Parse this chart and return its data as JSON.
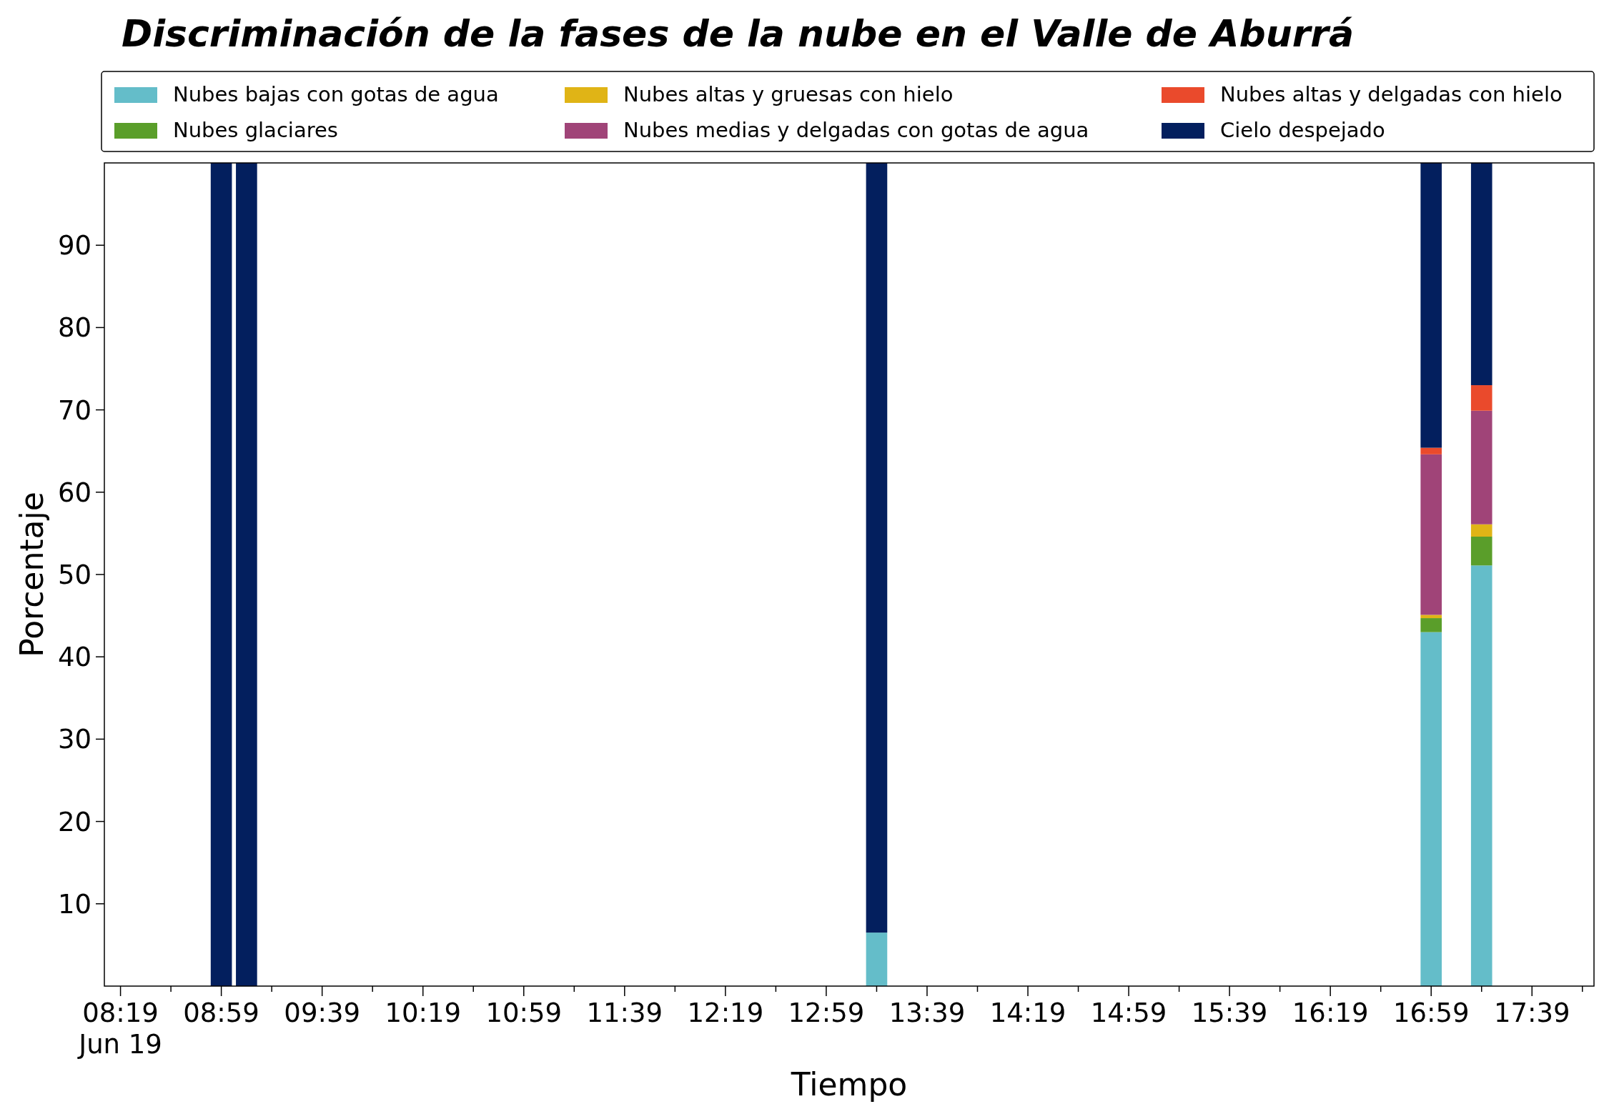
{
  "chart_data": {
    "type": "bar",
    "stacked": true,
    "title": "Discriminación de la fases de la nube en el Valle de Aburrá",
    "xlabel": "Tiempo",
    "ylabel": "Porcentaje",
    "x": [
      8.9833,
      9.15,
      13.3167,
      16.9833,
      17.3167
    ],
    "series": [
      {
        "name": "Nubes bajas con gotas de agua",
        "color": "#64bdc9",
        "values": [
          0,
          0,
          6.5,
          43,
          51.1
        ]
      },
      {
        "name": "Nubes glaciares",
        "color": "#5a9e2a",
        "values": [
          0,
          0,
          0,
          1.7,
          3.5
        ]
      },
      {
        "name": "Nubes altas y gruesas con hielo",
        "color": "#e0b416",
        "values": [
          0,
          0,
          0,
          0.4,
          1.5
        ]
      },
      {
        "name": "Nubes medias y delgadas con gotas de agua",
        "color": "#a04478",
        "values": [
          0,
          0,
          0,
          19.5,
          13.8
        ]
      },
      {
        "name": "Nubes altas y delgadas con hielo",
        "color": "#ea4a2c",
        "values": [
          0,
          0,
          0,
          0.8,
          3.1
        ]
      },
      {
        "name": "Cielo despejado",
        "color": "#031f5e",
        "values": [
          100,
          100,
          93.5,
          34.6,
          27
        ]
      }
    ],
    "xlim": [
      8.21,
      18.06
    ],
    "xticks": [
      {
        "value": 8.3167,
        "label": "08:19\nJun 19"
      },
      {
        "value": 8.65,
        "label": null
      },
      {
        "value": 8.9833,
        "label": "08:59"
      },
      {
        "value": 9.3167,
        "label": null
      },
      {
        "value": 9.65,
        "label": "09:39"
      },
      {
        "value": 9.9833,
        "label": null
      },
      {
        "value": 10.3167,
        "label": "10:19"
      },
      {
        "value": 10.65,
        "label": null
      },
      {
        "value": 10.9833,
        "label": "10:59"
      },
      {
        "value": 11.3167,
        "label": null
      },
      {
        "value": 11.65,
        "label": "11:39"
      },
      {
        "value": 11.9833,
        "label": null
      },
      {
        "value": 12.3167,
        "label": "12:19"
      },
      {
        "value": 12.65,
        "label": null
      },
      {
        "value": 12.9833,
        "label": "12:59"
      },
      {
        "value": 13.3167,
        "label": null
      },
      {
        "value": 13.65,
        "label": "13:39"
      },
      {
        "value": 13.9833,
        "label": null
      },
      {
        "value": 14.3167,
        "label": "14:19"
      },
      {
        "value": 14.65,
        "label": null
      },
      {
        "value": 14.9833,
        "label": "14:59"
      },
      {
        "value": 15.3167,
        "label": null
      },
      {
        "value": 15.65,
        "label": "15:39"
      },
      {
        "value": 15.9833,
        "label": null
      },
      {
        "value": 16.3167,
        "label": "16:19"
      },
      {
        "value": 16.65,
        "label": null
      },
      {
        "value": 16.9833,
        "label": "16:59"
      },
      {
        "value": 17.3167,
        "label": null
      },
      {
        "value": 17.65,
        "label": "17:39"
      },
      {
        "value": 17.9833,
        "label": null
      }
    ],
    "ylim": [
      0,
      100
    ],
    "yticks": [
      10,
      20,
      30,
      40,
      50,
      60,
      70,
      80,
      90
    ],
    "legend": "top",
    "grid": false
  }
}
